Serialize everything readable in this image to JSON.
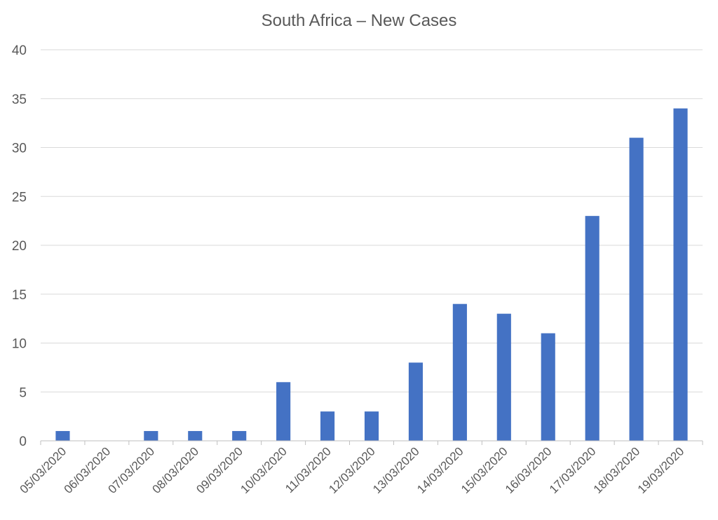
{
  "chart_data": {
    "type": "bar",
    "title": "South Africa – New Cases",
    "xlabel": "",
    "ylabel": "",
    "categories": [
      "05/03/2020",
      "06/03/2020",
      "07/03/2020",
      "08/03/2020",
      "09/03/2020",
      "10/03/2020",
      "11/03/2020",
      "12/03/2020",
      "13/03/2020",
      "14/03/2020",
      "15/03/2020",
      "16/03/2020",
      "17/03/2020",
      "18/03/2020",
      "19/03/2020"
    ],
    "values": [
      1,
      0,
      1,
      1,
      1,
      6,
      3,
      3,
      8,
      14,
      13,
      11,
      23,
      31,
      34
    ],
    "ylim": [
      0,
      40
    ],
    "yticks": [
      0,
      5,
      10,
      15,
      20,
      25,
      30,
      35,
      40
    ],
    "grid": true,
    "legend": "none",
    "bar_color": "#4472c4"
  }
}
